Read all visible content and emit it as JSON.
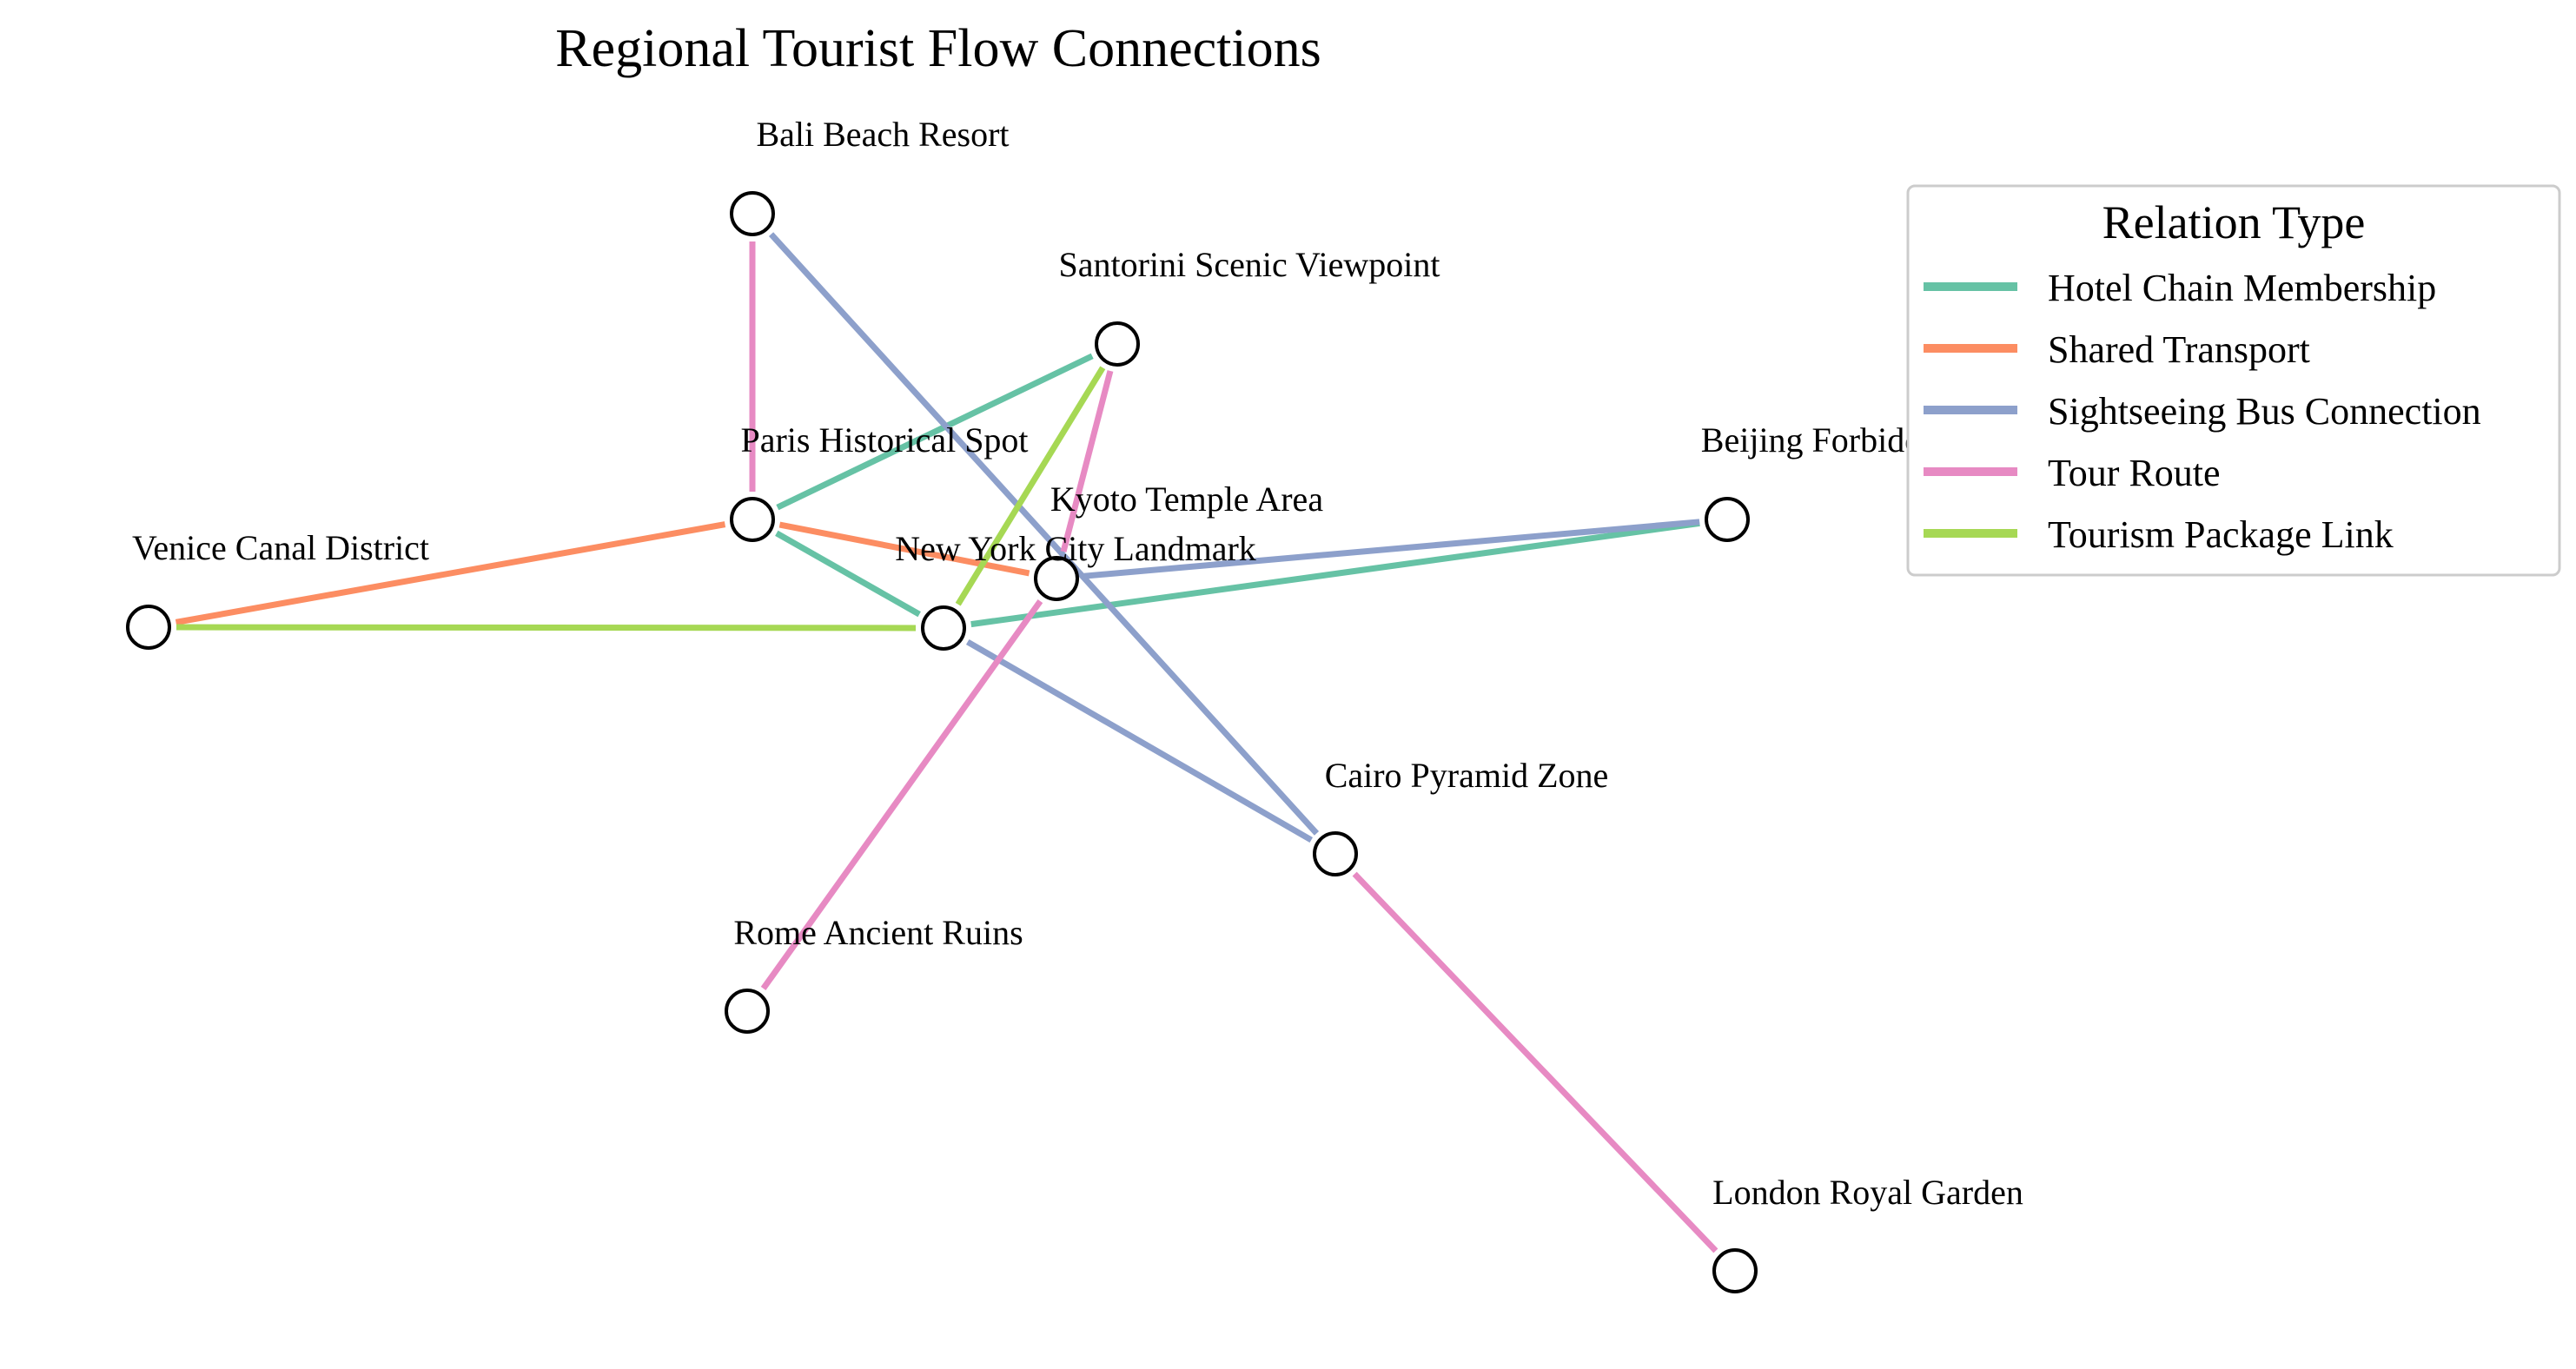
{
  "title": "Regional Tourist Flow Connections",
  "legend": {
    "title": "Relation Type",
    "items": [
      {
        "key": "hotel",
        "label": "Hotel Chain Membership",
        "color": "#66c2a5"
      },
      {
        "key": "transport",
        "label": "Shared Transport",
        "color": "#fc8d62"
      },
      {
        "key": "bus",
        "label": "Sightseeing Bus Connection",
        "color": "#8da0cb"
      },
      {
        "key": "tour",
        "label": "Tour Route",
        "color": "#e78ac3"
      },
      {
        "key": "package",
        "label": "Tourism Package Link",
        "color": "#a6d854"
      }
    ]
  },
  "nodes": [
    {
      "id": "bali",
      "label": "Bali Beach Resort"
    },
    {
      "id": "santorini",
      "label": "Santorini Scenic Viewpoint"
    },
    {
      "id": "paris",
      "label": "Paris Historical Spot"
    },
    {
      "id": "beijing",
      "label": "Beijing Forbidden Site"
    },
    {
      "id": "kyoto",
      "label": "Kyoto Temple Area"
    },
    {
      "id": "venice",
      "label": "Venice Canal District"
    },
    {
      "id": "nyc",
      "label": "New York City Landmark"
    },
    {
      "id": "cairo",
      "label": "Cairo Pyramid Zone"
    },
    {
      "id": "rome",
      "label": "Rome Ancient Ruins"
    },
    {
      "id": "london",
      "label": "London Royal Garden"
    }
  ],
  "edges": [
    {
      "source": "paris",
      "target": "santorini",
      "type": "hotel"
    },
    {
      "source": "paris",
      "target": "nyc",
      "type": "hotel"
    },
    {
      "source": "nyc",
      "target": "beijing",
      "type": "hotel"
    },
    {
      "source": "venice",
      "target": "paris",
      "type": "transport"
    },
    {
      "source": "paris",
      "target": "kyoto",
      "type": "transport"
    },
    {
      "source": "bali",
      "target": "cairo",
      "type": "bus"
    },
    {
      "source": "kyoto",
      "target": "beijing",
      "type": "bus"
    },
    {
      "source": "nyc",
      "target": "cairo",
      "type": "bus"
    },
    {
      "source": "bali",
      "target": "paris",
      "type": "tour"
    },
    {
      "source": "santorini",
      "target": "kyoto",
      "type": "tour"
    },
    {
      "source": "kyoto",
      "target": "rome",
      "type": "tour"
    },
    {
      "source": "cairo",
      "target": "london",
      "type": "tour"
    },
    {
      "source": "venice",
      "target": "nyc",
      "type": "package"
    },
    {
      "source": "nyc",
      "target": "santorini",
      "type": "package"
    }
  ]
}
